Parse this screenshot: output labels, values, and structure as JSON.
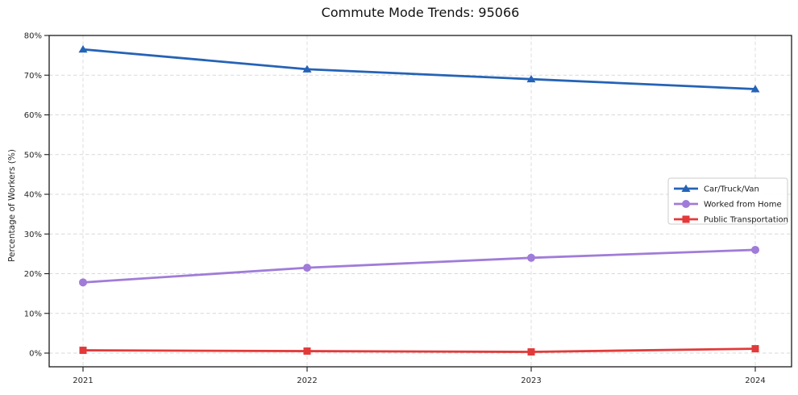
{
  "chart_data": {
    "type": "line",
    "title": "Commute Mode Trends: 95066",
    "xlabel": "",
    "ylabel": "Percentage of Workers (%)",
    "x": [
      2021,
      2022,
      2023,
      2024
    ],
    "x_tick_labels": [
      "2021",
      "2022",
      "2023",
      "2024"
    ],
    "y_ticks": [
      0,
      10,
      20,
      30,
      40,
      50,
      60,
      70,
      80
    ],
    "y_tick_labels": [
      "0%",
      "10%",
      "20%",
      "30%",
      "40%",
      "50%",
      "60%",
      "70%",
      "80%"
    ],
    "ylim": [
      -3.45,
      80
    ],
    "grid": true,
    "legend_position": "center-right",
    "series": [
      {
        "name": "Car/Truck/Van",
        "marker": "triangle-up",
        "color": "#2563b6",
        "values": [
          76.5,
          71.5,
          69.0,
          66.5
        ]
      },
      {
        "name": "Worked from Home",
        "marker": "circle",
        "color": "#a07cd8",
        "values": [
          17.8,
          21.5,
          24.0,
          26.0
        ]
      },
      {
        "name": "Public Transportation",
        "marker": "square",
        "color": "#e23a3a",
        "values": [
          0.7,
          0.5,
          0.3,
          1.1
        ]
      }
    ]
  }
}
